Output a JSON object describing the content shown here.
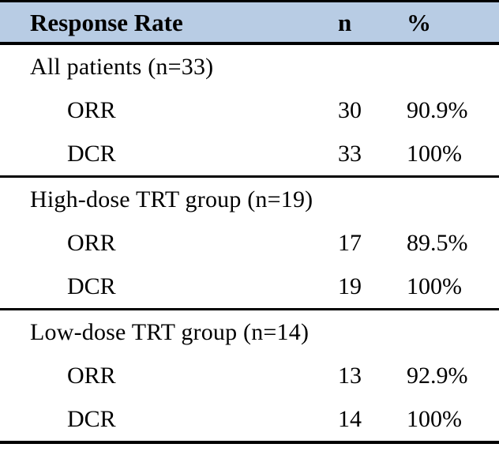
{
  "table": {
    "header": {
      "label": "Response Rate",
      "n": "n",
      "pct": "%"
    },
    "colors": {
      "header_bg": "#b8cce4",
      "border": "#000000",
      "text": "#000000"
    },
    "sections": [
      {
        "label": "All patients (n=33)",
        "rows": [
          {
            "label": "ORR",
            "n": "30",
            "pct": "90.9%"
          },
          {
            "label": "DCR",
            "n": "33",
            "pct": "100%"
          }
        ]
      },
      {
        "label": "High-dose TRT group (n=19)",
        "rows": [
          {
            "label": "ORR",
            "n": "17",
            "pct": "89.5%"
          },
          {
            "label": "DCR",
            "n": "19",
            "pct": "100%"
          }
        ]
      },
      {
        "label": "Low-dose TRT group (n=14)",
        "rows": [
          {
            "label": "ORR",
            "n": "13",
            "pct": "92.9%"
          },
          {
            "label": "DCR",
            "n": "14",
            "pct": "100%"
          }
        ]
      }
    ]
  }
}
